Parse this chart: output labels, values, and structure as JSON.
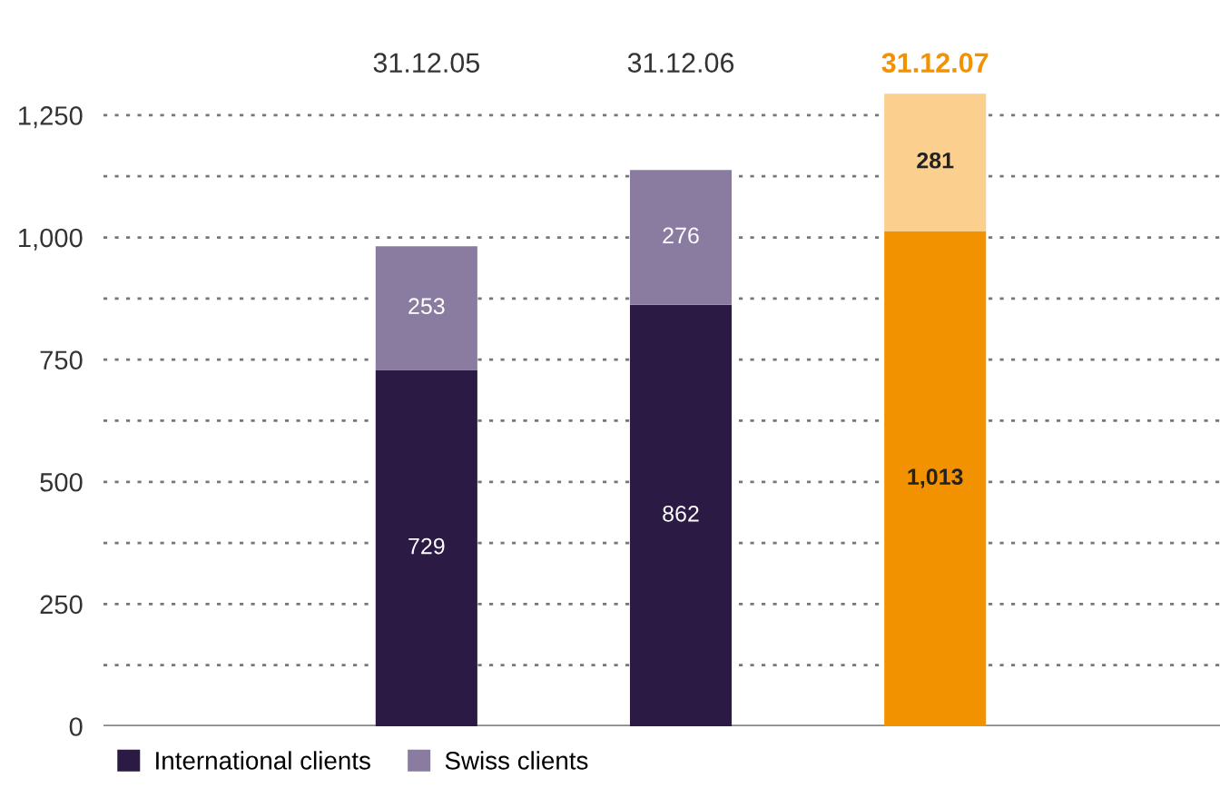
{
  "chart_data": {
    "type": "bar",
    "stacked": true,
    "categories": [
      "31.12.05",
      "31.12.06",
      "31.12.07"
    ],
    "series": [
      {
        "name": "International clients",
        "color": "#2b1a44",
        "colors": [
          "#2b1a44",
          "#2b1a44",
          "#f39200"
        ],
        "values": [
          729,
          862,
          1013
        ],
        "value_labels": [
          "729",
          "862",
          "1,013"
        ]
      },
      {
        "name": "Swiss clients",
        "color": "#8a7ca0",
        "colors": [
          "#8a7ca0",
          "#8a7ca0",
          "#fbcf8e"
        ],
        "values": [
          253,
          276,
          281
        ],
        "value_labels": [
          "253",
          "276",
          "281"
        ]
      }
    ],
    "ylim": [
      0,
      1300
    ],
    "yticks": [
      0,
      {
        "value": 125,
        "label": null
      },
      {
        "value": 250,
        "label": "250"
      },
      {
        "value": 375,
        "label": null
      },
      {
        "value": 500,
        "label": "500"
      },
      {
        "value": 625,
        "label": null
      },
      {
        "value": 750,
        "label": "750"
      },
      {
        "value": 875,
        "label": null
      },
      {
        "value": 1000,
        "label": "1,000"
      },
      {
        "value": 1125,
        "label": null
      },
      {
        "value": 1250,
        "label": "1,250"
      }
    ],
    "grid": "y",
    "legend": "bottom left"
  }
}
